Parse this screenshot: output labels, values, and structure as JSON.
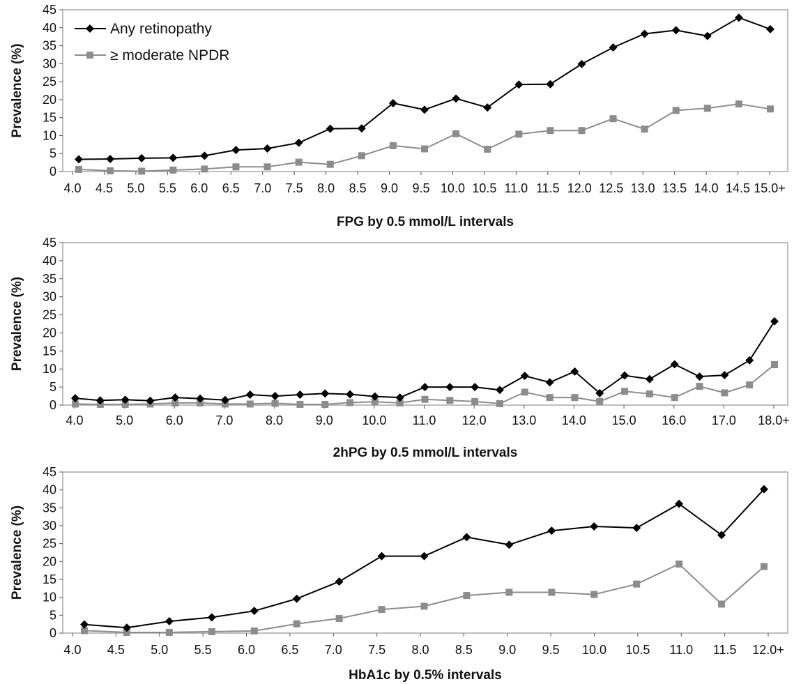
{
  "colors": {
    "any": "#000000",
    "moderate": "#8c8c8c",
    "axis": "#999999"
  },
  "legend": [
    {
      "label": "Any retinopathy",
      "marker": "diamond",
      "color": "#000000"
    },
    {
      "label": "≥ moderate NPDR",
      "marker": "square",
      "color": "#8c8c8c"
    }
  ],
  "chart_data": [
    {
      "type": "line",
      "xlabel": "FPG by 0.5 mmol/L intervals",
      "ylabel": "Prevalence (%)",
      "ylim": [
        0,
        45
      ],
      "yticks": [
        0,
        5,
        10,
        15,
        20,
        25,
        30,
        35,
        40,
        45
      ],
      "x_tick_labels": [
        "4.0",
        "4.5",
        "5.0",
        "5.5",
        "6.0",
        "6.5",
        "7.0",
        "7.5",
        "8.0",
        "8.5",
        "9.0",
        "9.5",
        "10.0",
        "10.5",
        "11.0",
        "11.5",
        "12.0",
        "12.5",
        "13.0",
        "13.5",
        "14.0",
        "14.5",
        "15.0+"
      ],
      "legend_position": "top-left",
      "series": [
        {
          "name": "Any retinopathy",
          "values": [
            3.4,
            3.5,
            3.7,
            3.8,
            4.4,
            6.0,
            6.4,
            8.0,
            11.9,
            12.0,
            19.0,
            17.2,
            20.3,
            17.8,
            24.2,
            24.3,
            29.9,
            34.5,
            38.3,
            39.3,
            37.7,
            42.8,
            39.6
          ]
        },
        {
          "name": "≥ moderate NPDR",
          "values": [
            0.6,
            0.2,
            0.1,
            0.4,
            0.7,
            1.3,
            1.3,
            2.6,
            2.0,
            4.4,
            7.2,
            6.3,
            10.5,
            6.2,
            10.4,
            11.4,
            11.4,
            14.7,
            11.8,
            17.0,
            17.6,
            18.8,
            17.4
          ]
        }
      ]
    },
    {
      "type": "line",
      "xlabel": "2hPG by 0.5 mmol/L intervals",
      "ylabel": "Prevalence (%)",
      "ylim": [
        0,
        45
      ],
      "yticks": [
        0,
        5,
        10,
        15,
        20,
        25,
        30,
        35,
        40,
        45
      ],
      "x_tick_labels": [
        "4.0",
        "5.0",
        "6.0",
        "7.0",
        "8.0",
        "9.0",
        "10.0",
        "11.0",
        "12.0",
        "13.0",
        "14.0",
        "15.0",
        "16.0",
        "17.0",
        "18.0+"
      ],
      "series": [
        {
          "name": "Any retinopathy",
          "values": [
            1.9,
            1.3,
            1.5,
            1.2,
            2.1,
            1.8,
            1.4,
            2.9,
            2.5,
            2.9,
            3.2,
            3.0,
            2.4,
            2.1,
            5.0,
            5.0,
            5.0,
            4.2,
            8.1,
            6.3,
            9.3,
            3.3,
            8.2,
            7.2,
            11.3,
            7.9,
            8.3,
            12.4,
            23.2
          ]
        },
        {
          "name": "≥ moderate NPDR",
          "values": [
            0.3,
            0.2,
            0.2,
            0.3,
            0.6,
            0.6,
            0.3,
            0.3,
            0.5,
            0.2,
            0.2,
            0.7,
            0.9,
            0.6,
            1.6,
            1.3,
            1.0,
            0.4,
            3.6,
            2.1,
            2.1,
            1.0,
            3.8,
            3.1,
            2.1,
            5.2,
            3.4,
            5.6,
            11.2
          ]
        }
      ]
    },
    {
      "type": "line",
      "xlabel": "HbA1c by 0.5% intervals",
      "ylabel": "Prevalence (%)",
      "ylim": [
        0,
        45
      ],
      "yticks": [
        0,
        5,
        10,
        15,
        20,
        25,
        30,
        35,
        40,
        45
      ],
      "x_tick_labels": [
        "4.0",
        "4.5",
        "5.0",
        "5.5",
        "6.0",
        "6.5",
        "7.0",
        "7.5",
        "8.0",
        "8.5",
        "9.0",
        "9.5",
        "10.0",
        "10.5",
        "11.0",
        "11.5",
        "12.0+"
      ],
      "series": [
        {
          "name": "Any retinopathy",
          "values": [
            2.4,
            1.5,
            3.3,
            4.4,
            6.2,
            9.6,
            14.4,
            21.5,
            21.5,
            26.8,
            24.7,
            28.6,
            29.8,
            29.4,
            36.1,
            27.4,
            40.2
          ]
        },
        {
          "name": "≥ moderate NPDR",
          "values": [
            0.7,
            0.2,
            0.2,
            0.4,
            0.6,
            2.6,
            4.1,
            6.6,
            7.5,
            10.5,
            11.4,
            11.4,
            10.8,
            13.7,
            19.3,
            8.1,
            18.6
          ]
        }
      ]
    }
  ]
}
